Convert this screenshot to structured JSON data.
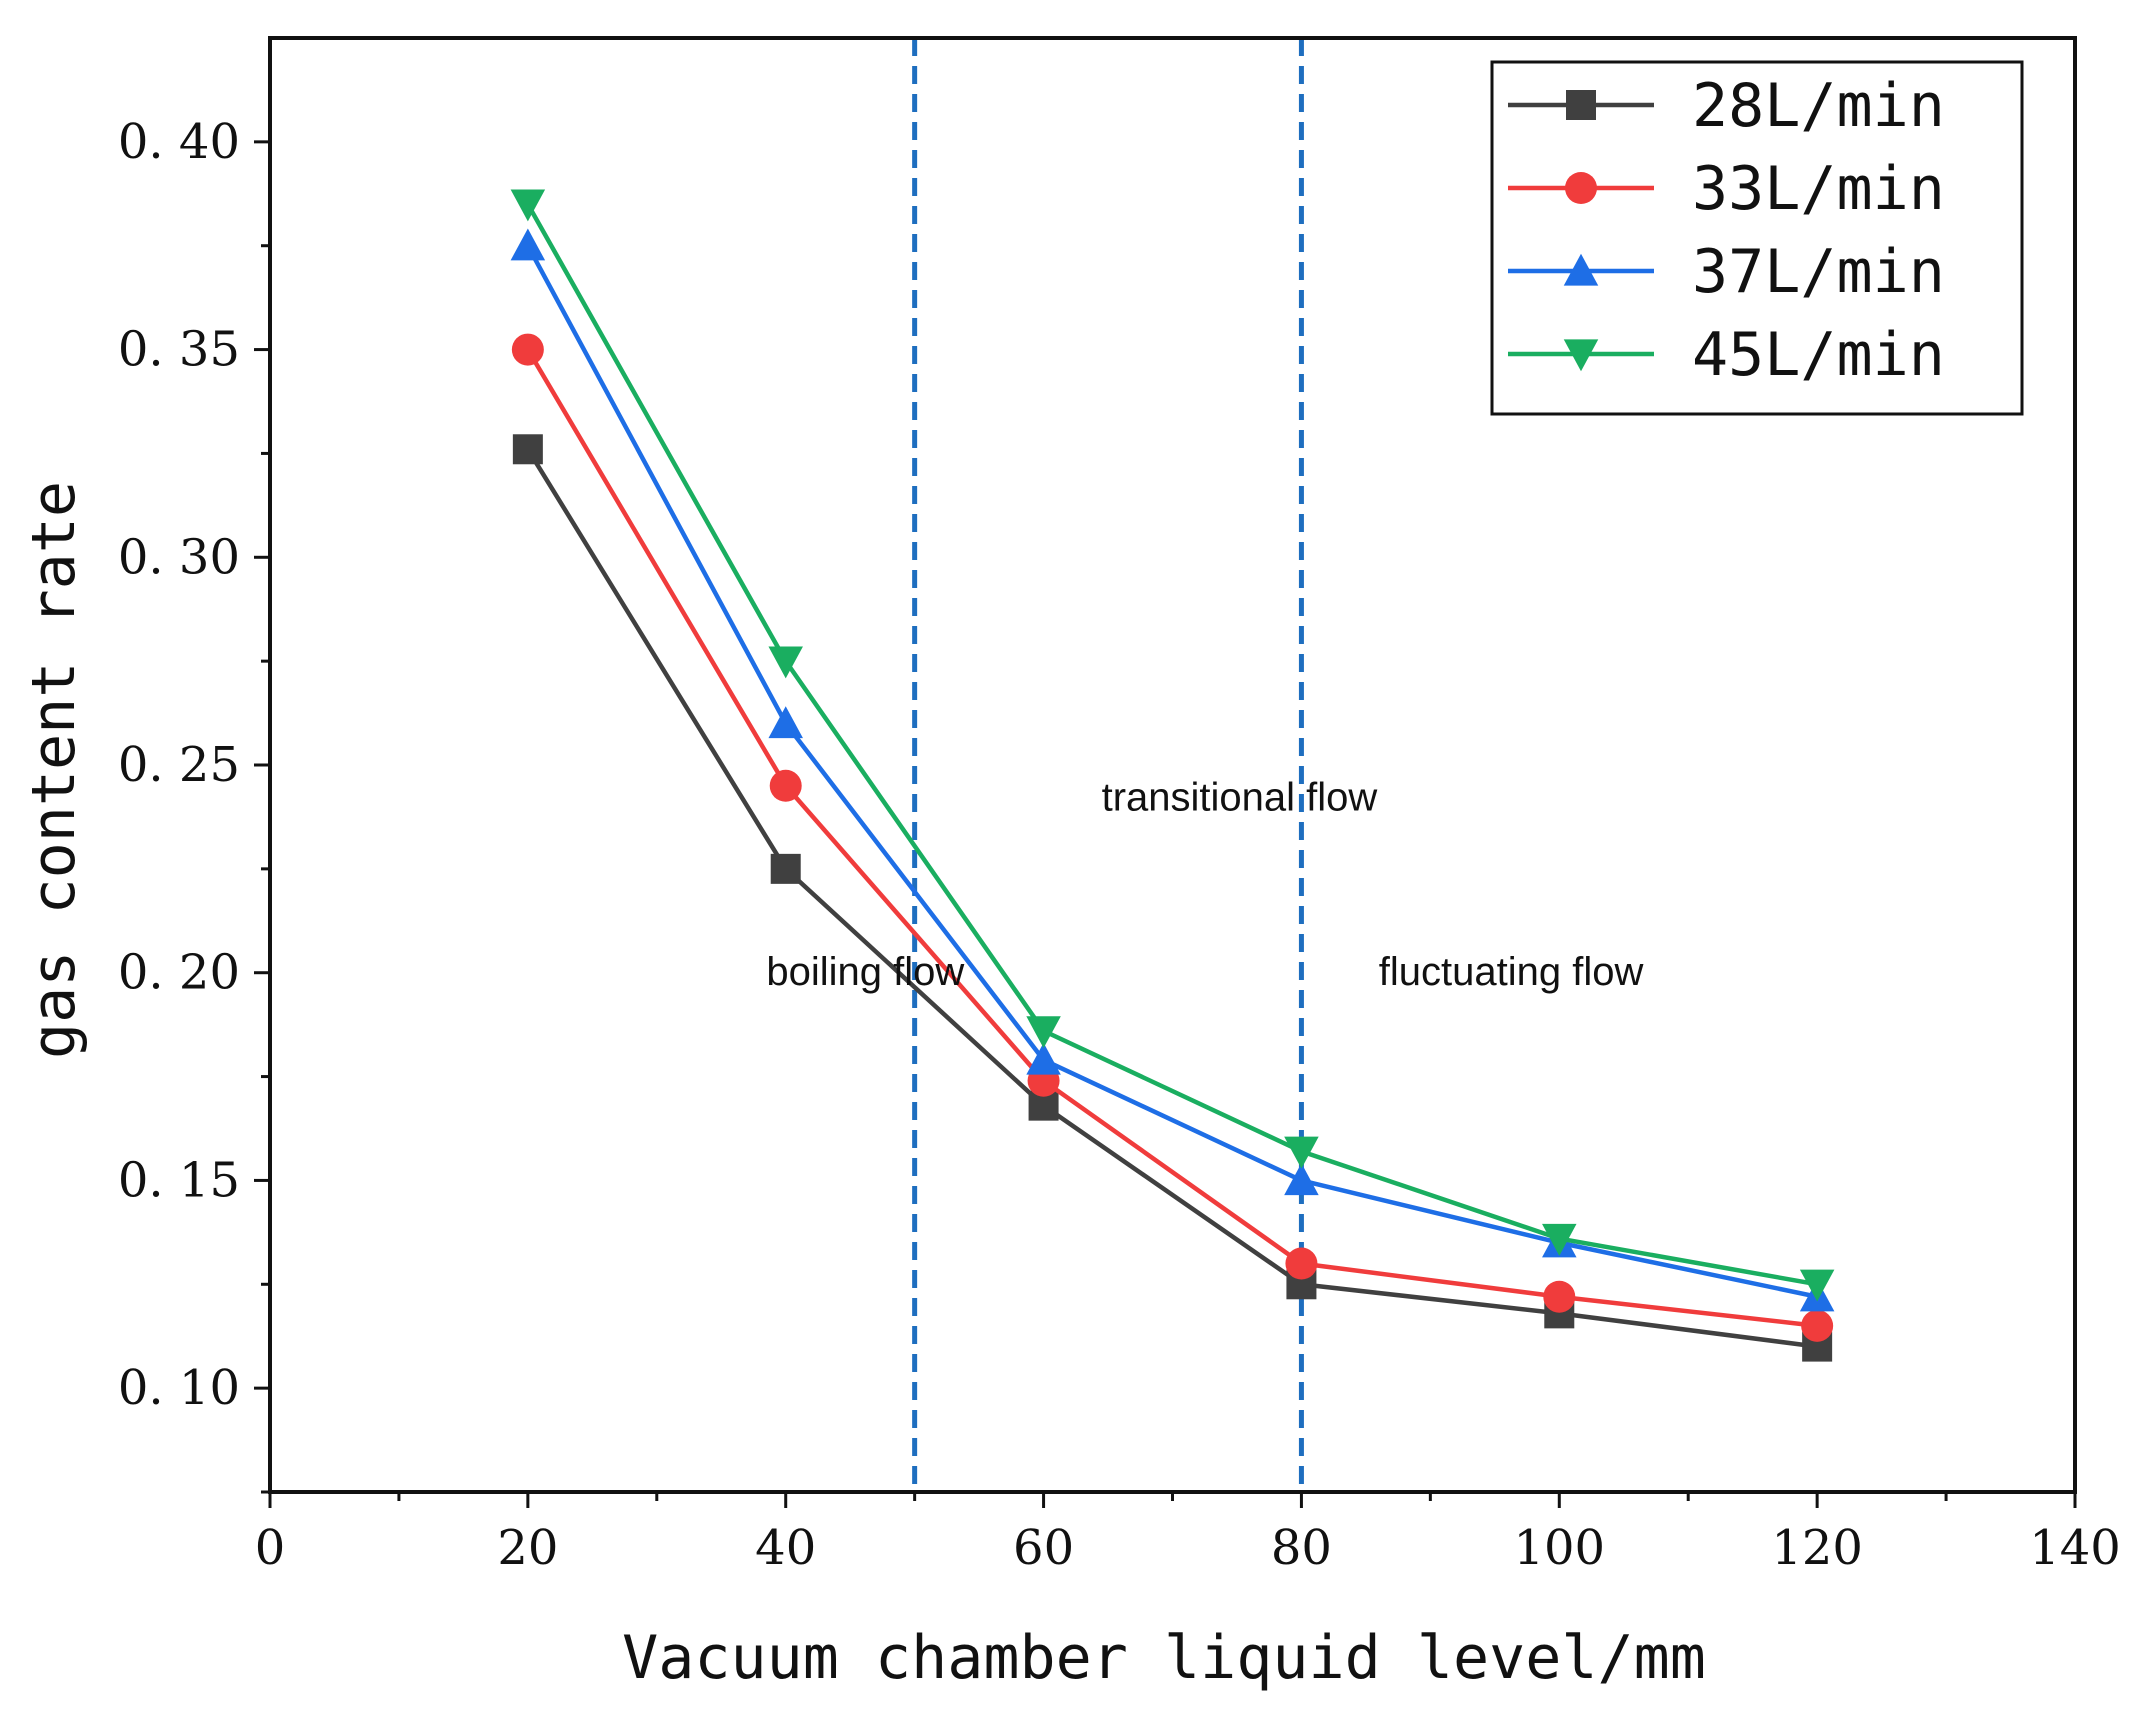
{
  "chart_data": {
    "type": "line",
    "title": "",
    "xlabel": "Vacuum chamber liquid level/mm",
    "ylabel": "gas content rate",
    "xlim": [
      0,
      140
    ],
    "ylim": [
      0.075,
      0.425
    ],
    "x": [
      20,
      40,
      60,
      80,
      100,
      120
    ],
    "x_ticks": [
      0,
      20,
      40,
      60,
      80,
      100,
      120,
      140
    ],
    "x_tick_labels": [
      "0",
      "20",
      "40",
      "60",
      "80",
      "100",
      "120",
      "140"
    ],
    "y_ticks": [
      0.1,
      0.15,
      0.2,
      0.25,
      0.3,
      0.35,
      0.4
    ],
    "y_tick_labels": [
      "0. 10",
      "0. 15",
      "0. 20",
      "0. 25",
      "0. 30",
      "0. 35",
      "0. 40"
    ],
    "grid": false,
    "legend_position": "top-right",
    "series": [
      {
        "name": "28L/min",
        "color": "#404040",
        "marker": "square",
        "values": [
          0.326,
          0.225,
          0.168,
          0.125,
          0.118,
          0.11
        ]
      },
      {
        "name": "33L/min",
        "color": "#f03c3c",
        "marker": "circle",
        "values": [
          0.35,
          0.245,
          0.174,
          0.13,
          0.122,
          0.115
        ]
      },
      {
        "name": "37L/min",
        "color": "#1e6ee6",
        "marker": "triangle-up",
        "values": [
          0.375,
          0.26,
          0.179,
          0.15,
          0.135,
          0.122
        ]
      },
      {
        "name": "45L/min",
        "color": "#1aae60",
        "marker": "triangle-down",
        "values": [
          0.385,
          0.275,
          0.186,
          0.157,
          0.136,
          0.125
        ]
      }
    ],
    "vlines": [
      {
        "x": 50,
        "color": "#1e6ebf",
        "style": "dashed"
      },
      {
        "x": 80,
        "color": "#1e6ebf",
        "style": "dashed"
      }
    ],
    "annotations": [
      {
        "text": "boiling flow",
        "x": 38.5,
        "y": 0.197
      },
      {
        "text": "transitional flow",
        "x": 64.5,
        "y": 0.239
      },
      {
        "text": "fluctuating flow",
        "x": 86,
        "y": 0.197
      }
    ]
  }
}
